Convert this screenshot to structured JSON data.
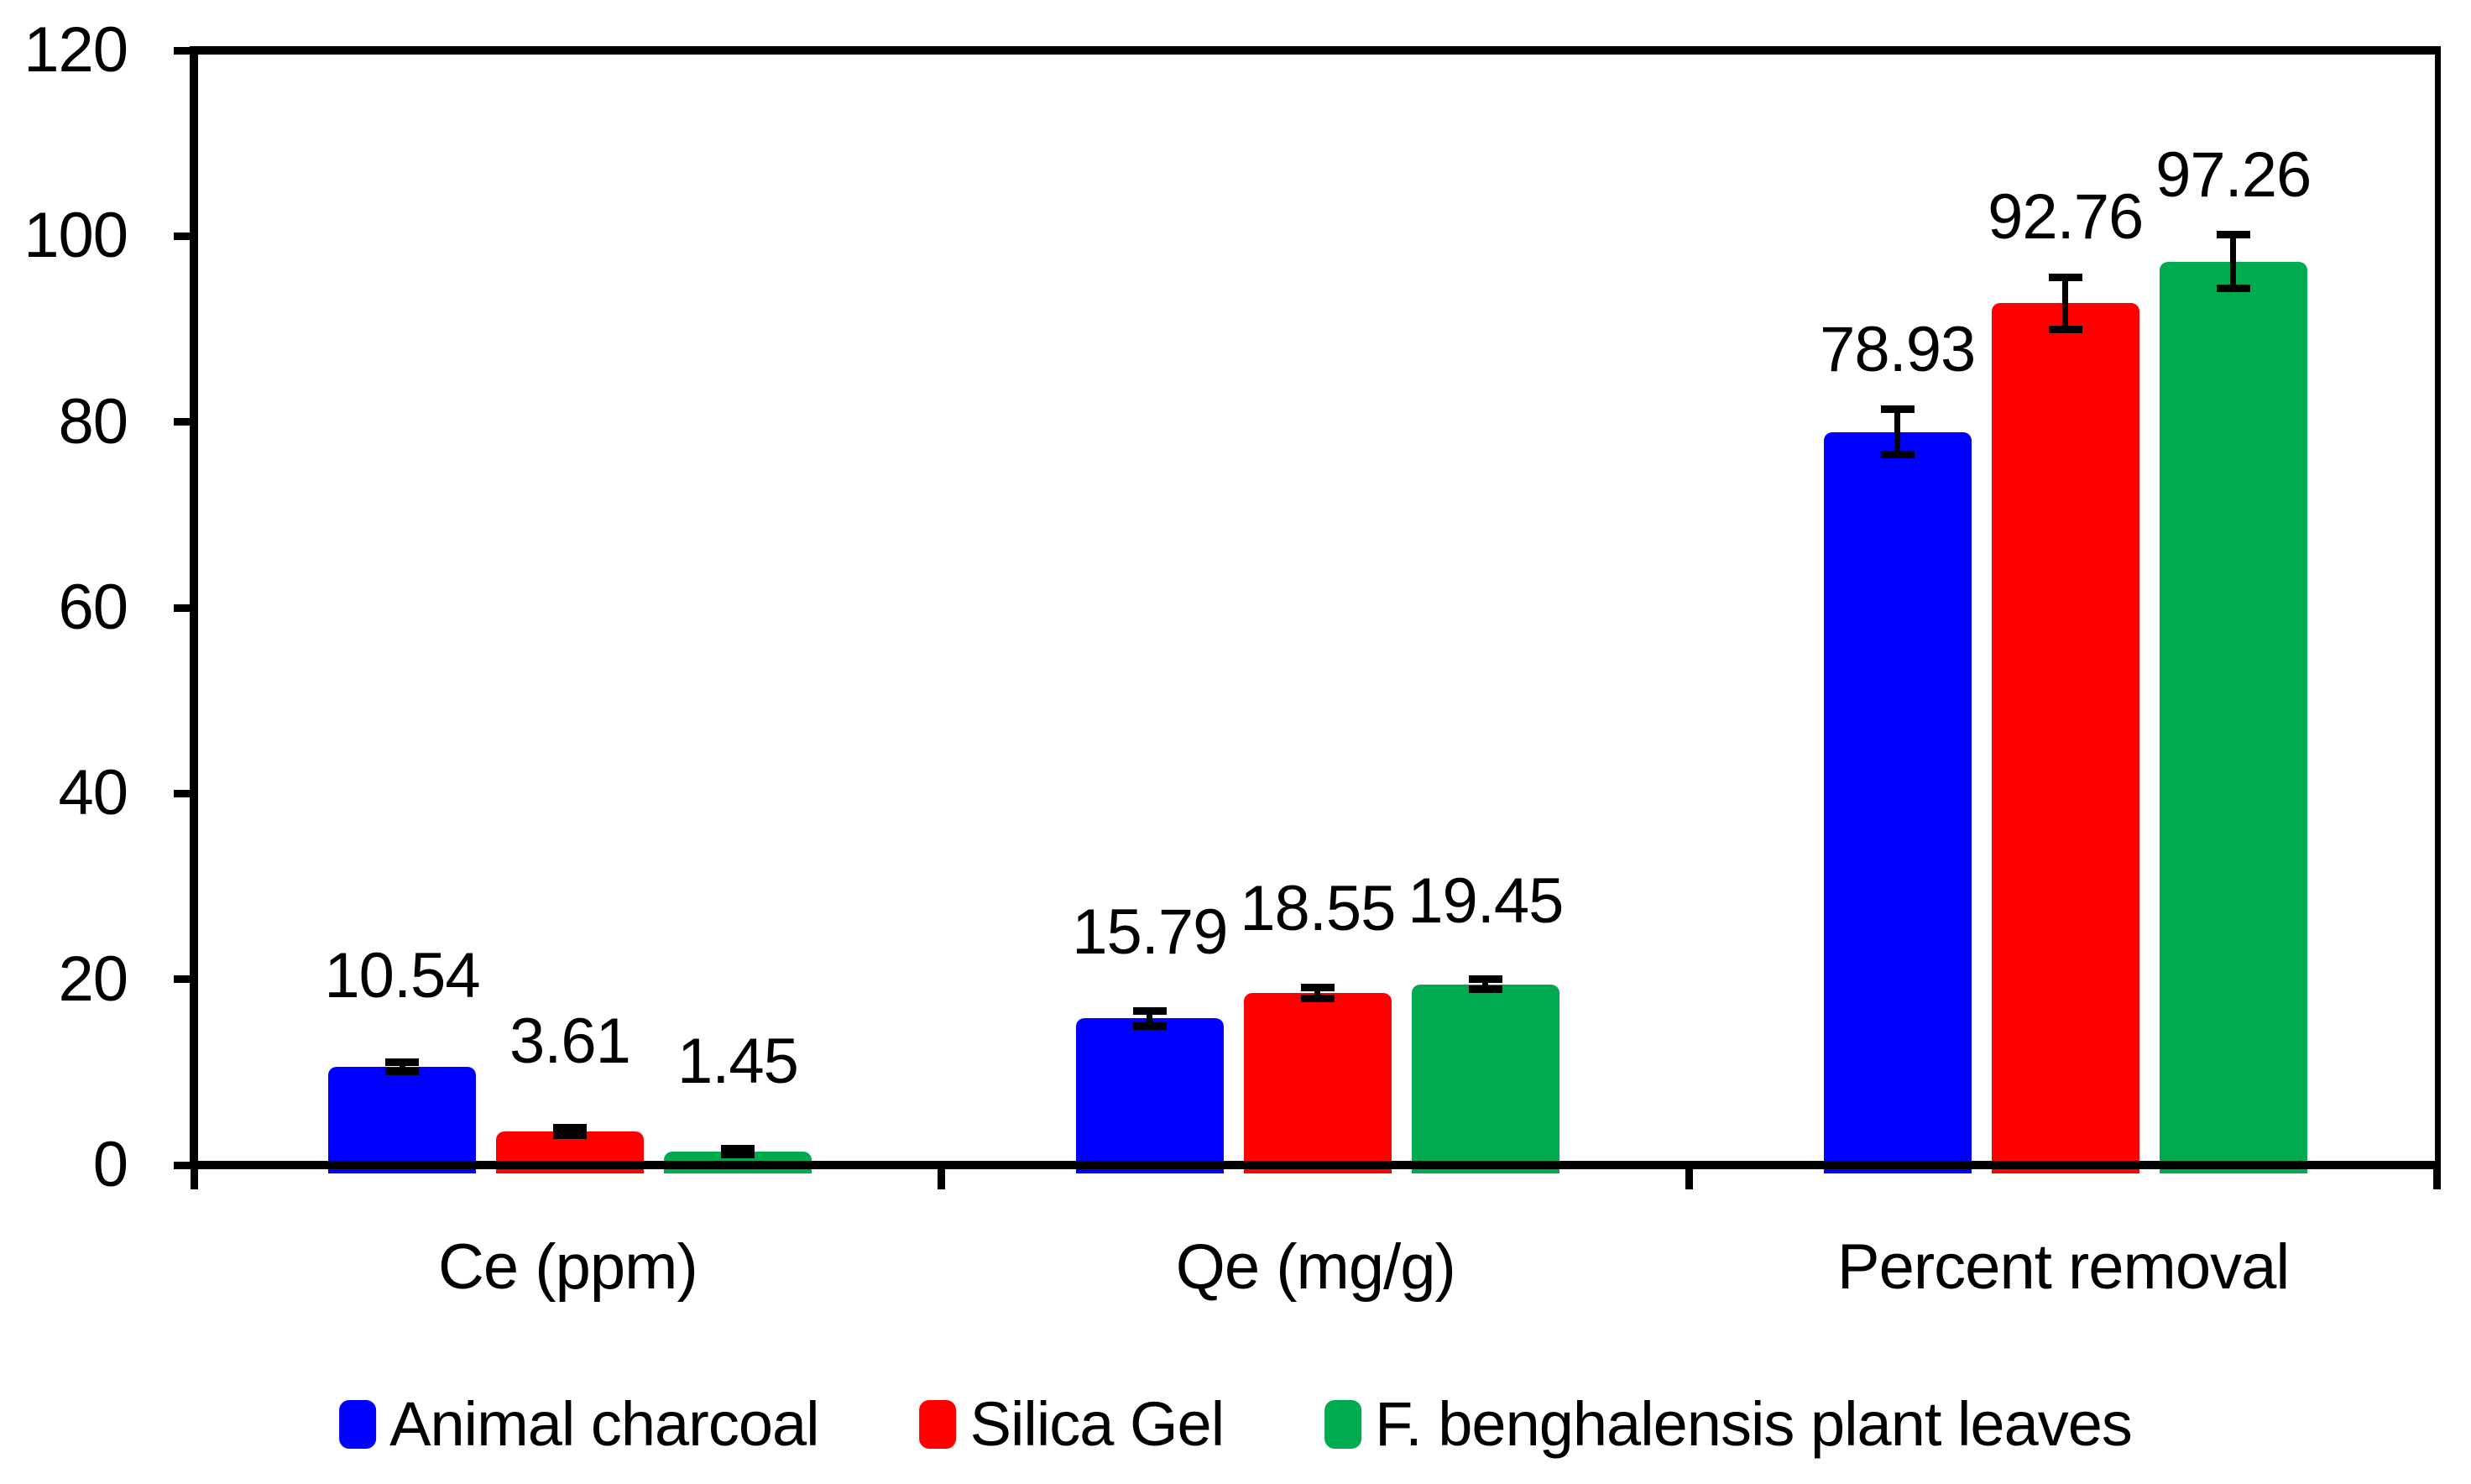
{
  "chart_data": {
    "type": "bar",
    "title": "",
    "xlabel": "",
    "ylabel": "",
    "categories": [
      "Ce (ppm)",
      "Qe (mg/g)",
      "Percent removal"
    ],
    "series": [
      {
        "name": "Animal charcoal",
        "color": "#0000FF",
        "values": [
          10.54,
          15.79,
          78.93
        ],
        "errors": [
          0.5,
          0.8,
          2.4
        ]
      },
      {
        "name": "Silica Gel",
        "color": "#FF0000",
        "values": [
          3.61,
          18.55,
          92.76
        ],
        "errors": [
          0.4,
          0.6,
          2.8
        ]
      },
      {
        "name": "F. benghalensis plant leaves",
        "color": "#00AB50",
        "values": [
          1.45,
          19.45,
          97.26
        ],
        "errors": [
          0.35,
          0.55,
          2.9
        ]
      }
    ],
    "data_labels": [
      [
        "10.54",
        "3.61",
        "1.45"
      ],
      [
        "15.79",
        "18.55",
        "19.45"
      ],
      [
        "78.93",
        "92.76",
        "97.26"
      ]
    ],
    "ylim": [
      0,
      120
    ],
    "ytick_step": 20,
    "yticks": [
      "0",
      "20",
      "40",
      "60",
      "80",
      "100",
      "120"
    ],
    "grid": false,
    "error_bars": true,
    "legend_position": "bottom",
    "frame_color": "#000000",
    "background_color": "#FFFFFF"
  }
}
